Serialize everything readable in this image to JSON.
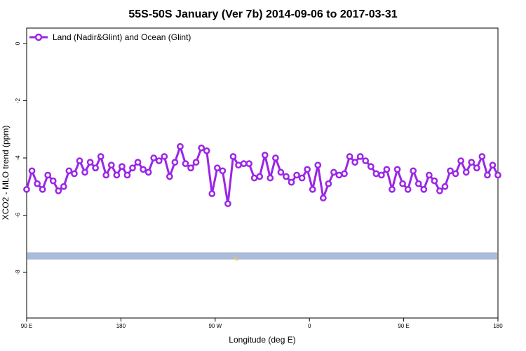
{
  "chart_data": {
    "type": "line",
    "title": "55S-50S January (Ver 7b)   2014-09-06 to 2017-03-31",
    "xlabel": "Longitude (deg E)",
    "ylabel": "XCO2 - MLO trend (ppm)",
    "x_ticks": [
      {
        "label": "90 E"
      },
      {
        "label": "180"
      },
      {
        "label": "90 W"
      },
      {
        "label": "0"
      },
      {
        "label": "90 E"
      },
      {
        "label": "180"
      }
    ],
    "y_ticks": [
      0,
      -2,
      -4,
      -6,
      -8
    ],
    "ylim": [
      -9.5,
      0.7
    ],
    "grid": false,
    "legend_position": "top-left",
    "series": [
      {
        "name": "Land (Nadir&Glint) and Ocean (Glint)",
        "color": "#9b26e6",
        "values": [
          -5.1,
          -4.45,
          -4.9,
          -5.1,
          -4.6,
          -4.8,
          -5.15,
          -5.0,
          -4.45,
          -4.55,
          -4.1,
          -4.5,
          -4.15,
          -4.35,
          -3.95,
          -4.6,
          -4.25,
          -4.6,
          -4.3,
          -4.6,
          -4.35,
          -4.15,
          -4.4,
          -4.5,
          -4.0,
          -4.1,
          -3.95,
          -4.65,
          -4.15,
          -3.6,
          -4.2,
          -4.35,
          -4.15,
          -3.65,
          -3.75,
          -5.25,
          -4.35,
          -4.45,
          -5.6,
          -3.95,
          -4.25,
          -4.2,
          -4.2,
          -4.7,
          -4.65,
          -3.9,
          -4.7,
          -4.0,
          -4.5,
          -4.65,
          -4.85,
          -4.6,
          -4.7,
          -4.4,
          -5.1,
          -4.25,
          -5.4,
          -4.9,
          -4.5,
          -4.6,
          -4.55,
          -3.95,
          -4.15,
          -3.95,
          -4.1,
          -4.3,
          -4.55,
          -4.6,
          -4.4,
          -5.1,
          -4.4,
          -4.9,
          -5.1,
          -4.45,
          -4.9,
          -5.1,
          -4.6,
          -4.8,
          -5.15,
          -5.0,
          -4.45,
          -4.55,
          -4.1,
          -4.5,
          -4.15,
          -4.35,
          -3.95,
          -4.6,
          -4.25,
          -4.6
        ]
      }
    ],
    "land_band": {
      "color": "#a9bcd9",
      "accent": "#f0c060",
      "y_range": [
        -7.3,
        -7.55
      ]
    }
  }
}
